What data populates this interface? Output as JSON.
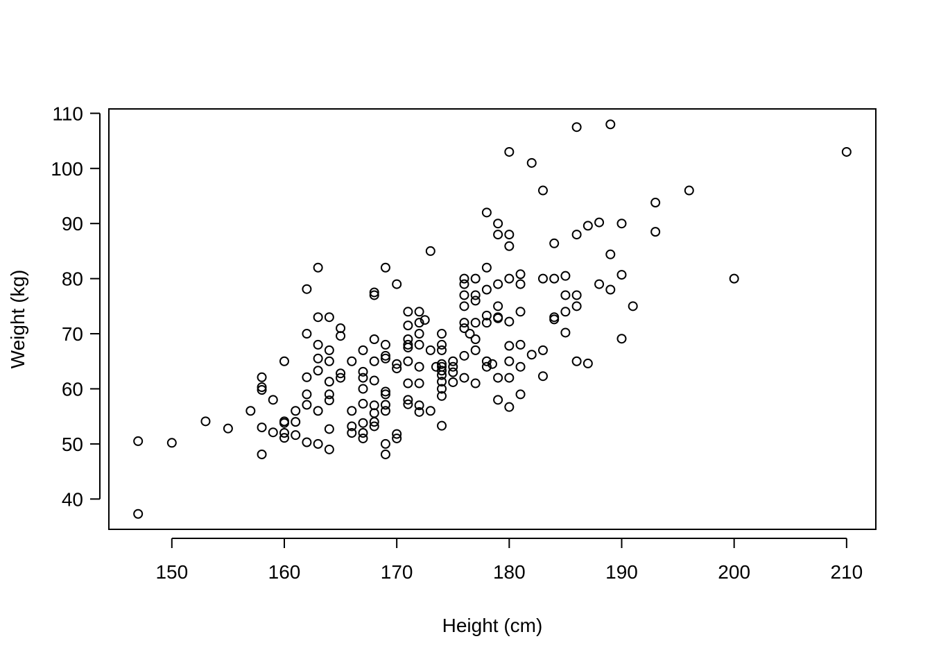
{
  "chart_data": {
    "type": "scatter",
    "title": "",
    "xlabel": "Height (cm)",
    "ylabel": "Weight (kg)",
    "xlim": [
      144.4,
      212.6
    ],
    "ylim": [
      34.5,
      110.8
    ],
    "x_ticks": [
      150,
      160,
      170,
      180,
      190,
      200,
      210
    ],
    "y_ticks": [
      40,
      50,
      60,
      70,
      80,
      90,
      100,
      110
    ],
    "grid": false,
    "legend": "none",
    "point_style": "open-circle",
    "color": "#000000",
    "points": [
      [
        147,
        37.3
      ],
      [
        147,
        50.5
      ],
      [
        150,
        50.2
      ],
      [
        153,
        54.1
      ],
      [
        155,
        52.8
      ],
      [
        157,
        56
      ],
      [
        158,
        48.1
      ],
      [
        158,
        53
      ],
      [
        158,
        59.8
      ],
      [
        158,
        60.3
      ],
      [
        158,
        62.1
      ],
      [
        159,
        52.1
      ],
      [
        159,
        58
      ],
      [
        160,
        51.1
      ],
      [
        160,
        52
      ],
      [
        160,
        53.8
      ],
      [
        160,
        54.1
      ],
      [
        160,
        65
      ],
      [
        161,
        51.6
      ],
      [
        161,
        54
      ],
      [
        161,
        56
      ],
      [
        162,
        50.3
      ],
      [
        162,
        57.1
      ],
      [
        162,
        59
      ],
      [
        162,
        62.1
      ],
      [
        162,
        70
      ],
      [
        162,
        78.1
      ],
      [
        163,
        50
      ],
      [
        163,
        56
      ],
      [
        163,
        63.3
      ],
      [
        163,
        65.5
      ],
      [
        163,
        68
      ],
      [
        163,
        73
      ],
      [
        163,
        82
      ],
      [
        164,
        49
      ],
      [
        164,
        52.7
      ],
      [
        164,
        57.9
      ],
      [
        164,
        59
      ],
      [
        164,
        61.3
      ],
      [
        164,
        65
      ],
      [
        164,
        67
      ],
      [
        164,
        73
      ],
      [
        165,
        62
      ],
      [
        165,
        62.8
      ],
      [
        165,
        69.6
      ],
      [
        165,
        71
      ],
      [
        166,
        52
      ],
      [
        166,
        53.2
      ],
      [
        166,
        56
      ],
      [
        166,
        65
      ],
      [
        167,
        51
      ],
      [
        167,
        52
      ],
      [
        167,
        53.8
      ],
      [
        167,
        57.3
      ],
      [
        167,
        60
      ],
      [
        167,
        62
      ],
      [
        167,
        63.1
      ],
      [
        167,
        67
      ],
      [
        168,
        53.2
      ],
      [
        168,
        54
      ],
      [
        168,
        55.6
      ],
      [
        168,
        57
      ],
      [
        168,
        61.5
      ],
      [
        168,
        65
      ],
      [
        168,
        69
      ],
      [
        168,
        77
      ],
      [
        168,
        77.5
      ],
      [
        169,
        48.1
      ],
      [
        169,
        50
      ],
      [
        169,
        56
      ],
      [
        169,
        57.1
      ],
      [
        169,
        59
      ],
      [
        169,
        59.5
      ],
      [
        169,
        65.5
      ],
      [
        169,
        66
      ],
      [
        169,
        68
      ],
      [
        169,
        82
      ],
      [
        170,
        51
      ],
      [
        170,
        51.8
      ],
      [
        170,
        63.7
      ],
      [
        170,
        64.5
      ],
      [
        170,
        79
      ],
      [
        171,
        57.2
      ],
      [
        171,
        58
      ],
      [
        171,
        61
      ],
      [
        171,
        65
      ],
      [
        171,
        67.5
      ],
      [
        171,
        68
      ],
      [
        171,
        69
      ],
      [
        171,
        71.5
      ],
      [
        171,
        74
      ],
      [
        172,
        55.8
      ],
      [
        172,
        57
      ],
      [
        172,
        61
      ],
      [
        172,
        64
      ],
      [
        172,
        68
      ],
      [
        172,
        70
      ],
      [
        172,
        72
      ],
      [
        172,
        74
      ],
      [
        172.5,
        72.5
      ],
      [
        173,
        56
      ],
      [
        173,
        67
      ],
      [
        173,
        85
      ],
      [
        173.5,
        64
      ],
      [
        174,
        53.3
      ],
      [
        174,
        58.7
      ],
      [
        174,
        60
      ],
      [
        174,
        61.3
      ],
      [
        174,
        62.5
      ],
      [
        174,
        63.3
      ],
      [
        174,
        64
      ],
      [
        174,
        64.5
      ],
      [
        174,
        67
      ],
      [
        174,
        68
      ],
      [
        174,
        70
      ],
      [
        175,
        61.2
      ],
      [
        175,
        63
      ],
      [
        175,
        64
      ],
      [
        175,
        65
      ],
      [
        176,
        62
      ],
      [
        176,
        66
      ],
      [
        176,
        71
      ],
      [
        176,
        72
      ],
      [
        176,
        75
      ],
      [
        176,
        77
      ],
      [
        176,
        79
      ],
      [
        176,
        80
      ],
      [
        176.5,
        70
      ],
      [
        177,
        61
      ],
      [
        177,
        67
      ],
      [
        177,
        69
      ],
      [
        177,
        72
      ],
      [
        177,
        76
      ],
      [
        177,
        77
      ],
      [
        177,
        80
      ],
      [
        178,
        64
      ],
      [
        178,
        65
      ],
      [
        178,
        72
      ],
      [
        178,
        73.3
      ],
      [
        178,
        78
      ],
      [
        178,
        82
      ],
      [
        178,
        92
      ],
      [
        178.5,
        64.5
      ],
      [
        179,
        58
      ],
      [
        179,
        62
      ],
      [
        179,
        72.8
      ],
      [
        179,
        73
      ],
      [
        179,
        75
      ],
      [
        179,
        79
      ],
      [
        179,
        88
      ],
      [
        179,
        90
      ],
      [
        180,
        56.7
      ],
      [
        180,
        62
      ],
      [
        180,
        65
      ],
      [
        180,
        67.8
      ],
      [
        180,
        72.2
      ],
      [
        180,
        80
      ],
      [
        180,
        85.9
      ],
      [
        180,
        88
      ],
      [
        180,
        103
      ],
      [
        181,
        59
      ],
      [
        181,
        64
      ],
      [
        181,
        68
      ],
      [
        181,
        74
      ],
      [
        181,
        79
      ],
      [
        181,
        80.8
      ],
      [
        182,
        66.2
      ],
      [
        182,
        101
      ],
      [
        183,
        62.3
      ],
      [
        183,
        67
      ],
      [
        183,
        80
      ],
      [
        183,
        96
      ],
      [
        184,
        72.6
      ],
      [
        184,
        73
      ],
      [
        184,
        80
      ],
      [
        184,
        86.4
      ],
      [
        185,
        70.2
      ],
      [
        185,
        74
      ],
      [
        185,
        77
      ],
      [
        185,
        80.5
      ],
      [
        186,
        65
      ],
      [
        186,
        75
      ],
      [
        186,
        77
      ],
      [
        186,
        88
      ],
      [
        186,
        107.5
      ],
      [
        187,
        64.6
      ],
      [
        187,
        89.6
      ],
      [
        188,
        79
      ],
      [
        188,
        90.2
      ],
      [
        189,
        78
      ],
      [
        189,
        84.4
      ],
      [
        189,
        108
      ],
      [
        190,
        69.1
      ],
      [
        190,
        80.7
      ],
      [
        190,
        90
      ],
      [
        191,
        75
      ],
      [
        193,
        88.5
      ],
      [
        193,
        93.8
      ],
      [
        196,
        96
      ],
      [
        200,
        80
      ],
      [
        210,
        103
      ]
    ]
  }
}
